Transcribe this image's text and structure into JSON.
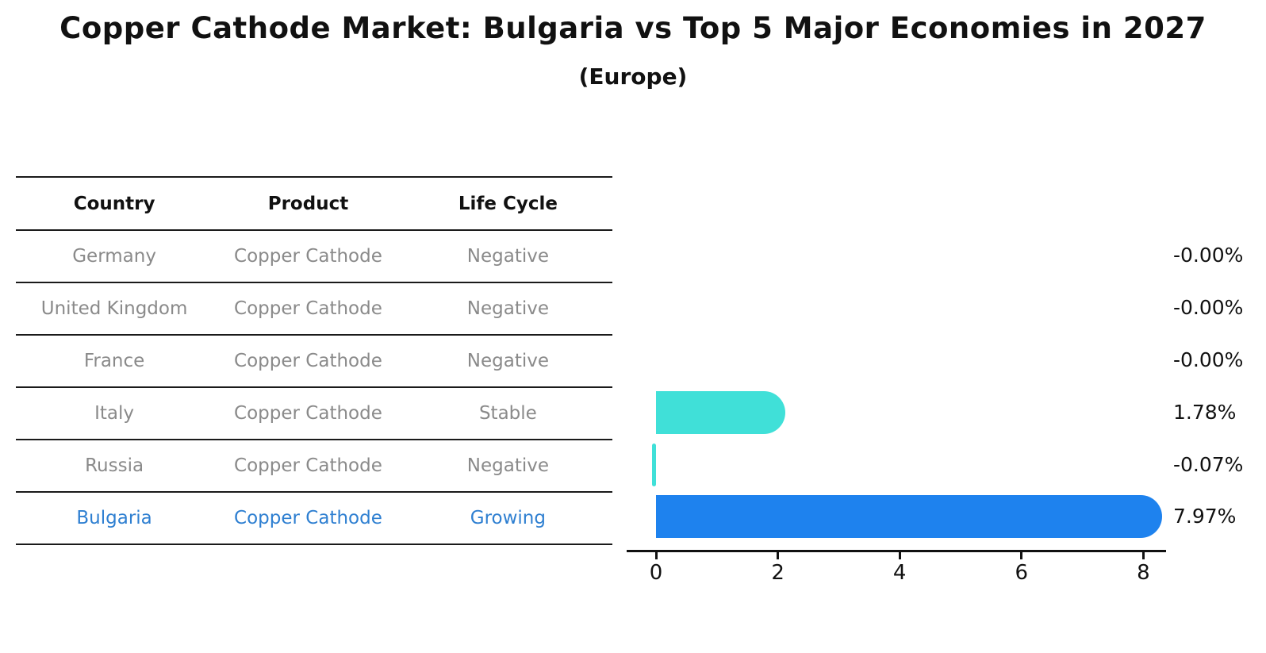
{
  "title": "Copper Cathode Market: Bulgaria vs Top 5 Major Economies in 2027",
  "subtitle": "(Europe)",
  "table": {
    "headers": [
      "Country",
      "Product",
      "Life Cycle"
    ],
    "rows": [
      {
        "country": "Germany",
        "product": "Copper Cathode",
        "life_cycle": "Negative",
        "highlight": false
      },
      {
        "country": "United Kingdom",
        "product": "Copper Cathode",
        "life_cycle": "Negative",
        "highlight": false
      },
      {
        "country": "France",
        "product": "Copper Cathode",
        "life_cycle": "Negative",
        "highlight": false
      },
      {
        "country": "Italy",
        "product": "Copper Cathode",
        "life_cycle": "Stable",
        "highlight": false
      },
      {
        "country": "Russia",
        "product": "Copper Cathode",
        "life_cycle": "Negative",
        "highlight": false
      },
      {
        "country": "Bulgaria",
        "product": "Copper Cathode",
        "life_cycle": "Growing",
        "highlight": true
      }
    ]
  },
  "chart_data": {
    "type": "bar",
    "orientation": "horizontal",
    "title": "Copper Cathode Market: Bulgaria vs Top 5 Major Economies in 2027 (Europe)",
    "categories": [
      "Germany",
      "United Kingdom",
      "France",
      "Italy",
      "Russia",
      "Bulgaria"
    ],
    "values": [
      -0.0,
      -0.0,
      -0.0,
      1.78,
      -0.07,
      7.97
    ],
    "value_labels": [
      "-0.00%",
      "-0.00%",
      "-0.00%",
      "1.78%",
      "-0.07%",
      "7.97%"
    ],
    "bar_colors": [
      "#40e0d8",
      "#40e0d8",
      "#40e0d8",
      "#40e0d8",
      "#40e0d8",
      "#1e82ee"
    ],
    "highlight_index": 5,
    "highlight_bar_style": "dotted-edge",
    "xticks": [
      0,
      2,
      4,
      6,
      8
    ],
    "xlim": [
      -0.5,
      8.4
    ],
    "xlabel": "",
    "ylabel": "",
    "grid": false,
    "legend": null
  },
  "colors": {
    "highlight_text": "#2e7fd1",
    "row_text": "#8a8a8a",
    "header_text": "#111111",
    "axis": "#111111",
    "turquoise": "#40e0d8",
    "blue": "#1e82ee"
  }
}
